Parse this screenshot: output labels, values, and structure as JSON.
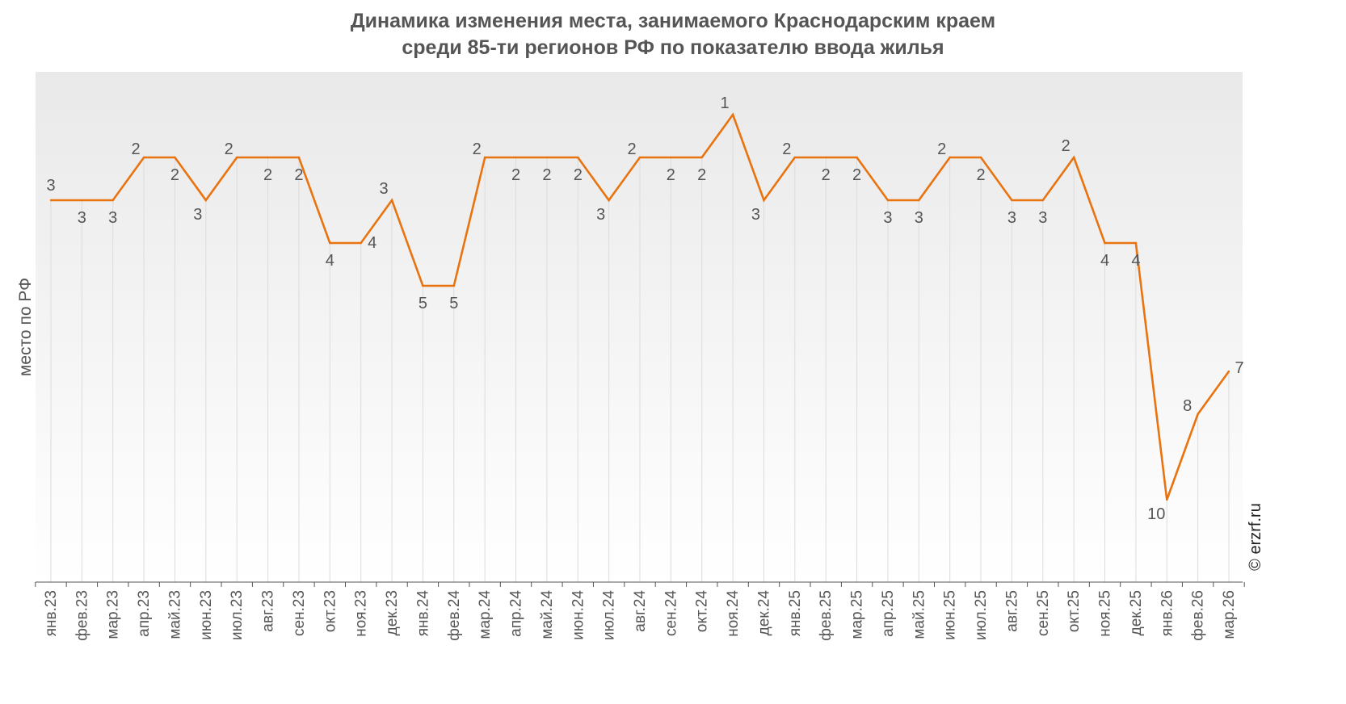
{
  "chart_data": {
    "type": "line",
    "title": "Динамика изменения места, занимаемого Краснодарским краем",
    "subtitle": "среди 85-ти регионов РФ по показателю ввода жилья",
    "ylabel": "место по РФ",
    "xlabel": "",
    "credit": "© erzrf.ru",
    "y_reversed": true,
    "ylim": [
      0,
      12
    ],
    "grid": false,
    "line_color": "#E8730F",
    "categories": [
      "янв.23",
      "фев.23",
      "мар.23",
      "апр.23",
      "май.23",
      "июн.23",
      "июл.23",
      "авг.23",
      "сен.23",
      "окт.23",
      "ноя.23",
      "дек.23",
      "янв.24",
      "фев.24",
      "мар.24",
      "апр.24",
      "май.24",
      "июн.24",
      "июл.24",
      "авг.24",
      "сен.24",
      "окт.24",
      "ноя.24",
      "дек.24",
      "янв.25",
      "фев.25",
      "мар.25",
      "апр.25",
      "май.25",
      "июн.25",
      "июл.25",
      "авг.25",
      "сен.25",
      "окт.25",
      "ноя.25",
      "дек.25",
      "янв.26",
      "фев.26",
      "мар.26"
    ],
    "values": [
      3,
      3,
      3,
      2,
      2,
      3,
      2,
      2,
      2,
      4,
      4,
      3,
      5,
      5,
      2,
      2,
      2,
      2,
      3,
      2,
      2,
      2,
      1,
      3,
      2,
      2,
      2,
      3,
      3,
      2,
      2,
      3,
      3,
      2,
      4,
      4,
      10,
      8,
      7
    ],
    "labels": [
      "3",
      "3",
      "3",
      "2",
      "2",
      "3",
      "2",
      "2",
      "2",
      "4",
      "4",
      "3",
      "5",
      "5",
      "2",
      "2",
      "2",
      "2",
      "3",
      "2",
      "2",
      "2",
      "1",
      "3",
      "2",
      "2",
      "2",
      "3",
      "3",
      "2",
      "2",
      "3",
      "3",
      "2",
      "4",
      "4",
      "10",
      "8",
      "7"
    ]
  }
}
